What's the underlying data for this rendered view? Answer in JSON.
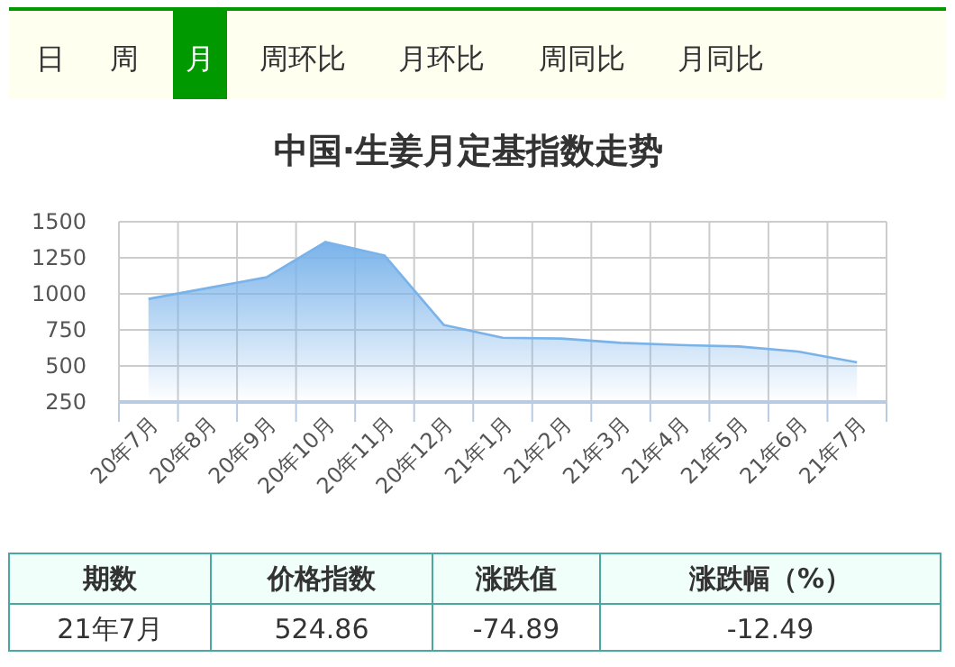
{
  "chart_data": {
    "type": "area",
    "title": "中国·生姜月定基指数走势",
    "categories": [
      "20年7月",
      "20年8月",
      "20年9月",
      "20年10月",
      "20年11月",
      "20年12月",
      "21年1月",
      "21年2月",
      "21年3月",
      "21年4月",
      "21年5月",
      "21年6月",
      "21年7月"
    ],
    "series": [
      {
        "color": "#7ab3ea",
        "values": [
          965,
          1040,
          1115,
          1360,
          1265,
          785,
          695,
          690,
          660,
          645,
          635,
          600,
          525
        ]
      }
    ],
    "ylim": [
      250,
      1500
    ],
    "yticks": [
      250,
      500,
      750,
      1000,
      1250,
      1500
    ],
    "grid": true,
    "annotations": [
      "日",
      "周",
      "月",
      "周环比",
      "月环比",
      "周同比",
      "月同比",
      "期数",
      "价格指数",
      "涨跌值",
      "涨跌幅（%）",
      "21年7月",
      "524.86",
      "-74.89",
      "-12.49"
    ]
  }
}
